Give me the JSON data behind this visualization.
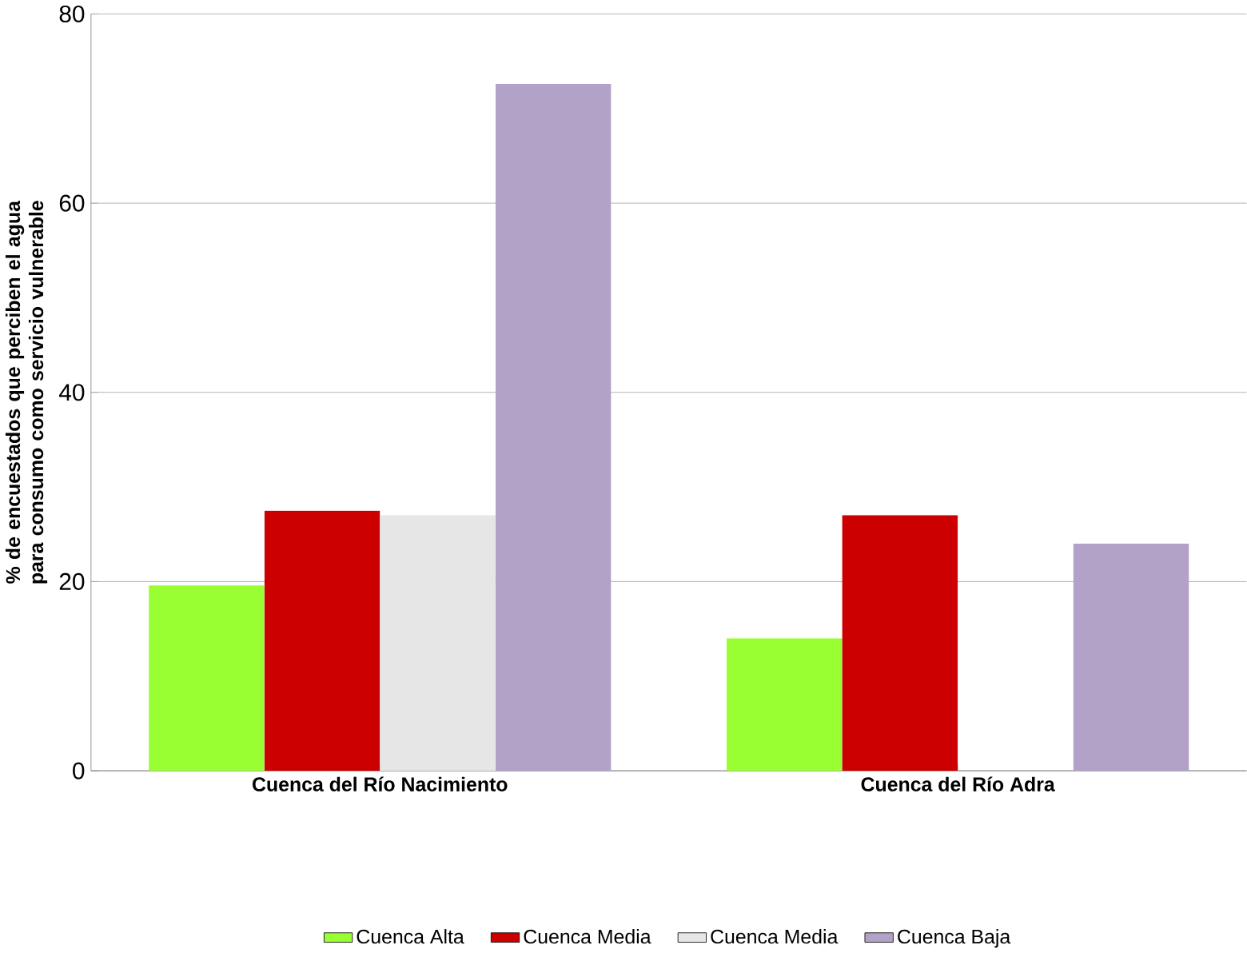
{
  "chart_data": {
    "type": "bar",
    "ylabel": "% de encuestados que perciben el agua para consumo como servicio vulnerable",
    "categories": [
      "Cuenca del Río Nacimiento",
      "Cuenca del Río Adra"
    ],
    "series": [
      {
        "name": "Cuenca Alta",
        "color": "#99ff33",
        "values": [
          19.6,
          14
        ]
      },
      {
        "name": "Cuenca Media",
        "color": "#cc0000",
        "values": [
          27.5,
          27
        ]
      },
      {
        "name": "Cuenca Media",
        "color": "#e6e6e6",
        "values": [
          27,
          null
        ]
      },
      {
        "name": "Cuenca Baja",
        "color": "#b3a2c7",
        "values": [
          72.6,
          24
        ]
      }
    ],
    "ylim": [
      0,
      80
    ],
    "yticks": [
      0,
      20,
      40,
      60,
      80
    ],
    "grid": "y",
    "legend": "bottom"
  }
}
